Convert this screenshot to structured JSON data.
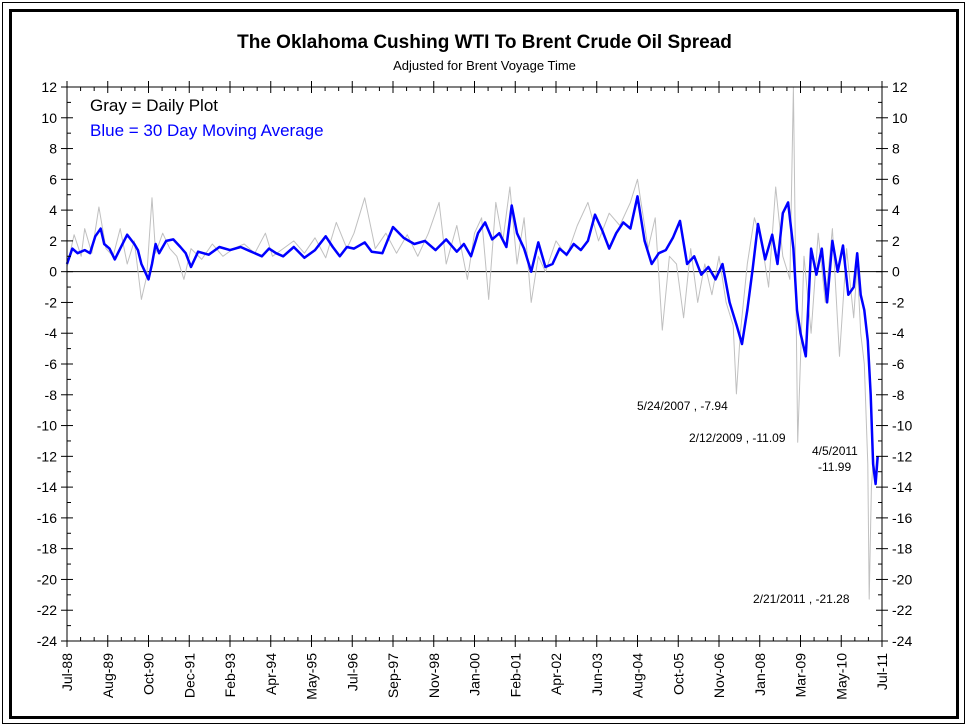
{
  "chart_data": {
    "type": "line",
    "title": "The Oklahoma Cushing WTI To Brent Crude Oil Spread",
    "subtitle": "Adjusted for Brent Voyage Time",
    "xlabel": "",
    "ylabel": "",
    "ylim": [
      -24,
      12
    ],
    "yticks": [
      12,
      10,
      8,
      6,
      4,
      2,
      0,
      -2,
      -4,
      -6,
      -8,
      -10,
      -12,
      -14,
      -16,
      -18,
      -20,
      -22,
      -24
    ],
    "y_minor_step": 1,
    "x_range": [
      1988.5,
      2011.5
    ],
    "x_tick_labels": [
      "Jul-88",
      "Aug-89",
      "Oct-90",
      "Dec-91",
      "Feb-93",
      "Apr-94",
      "May-95",
      "Jul-96",
      "Sep-97",
      "Nov-98",
      "Jan-00",
      "Feb-01",
      "Apr-02",
      "Jun-03",
      "Aug-04",
      "Oct-05",
      "Nov-06",
      "Jan-08",
      "Mar-09",
      "May-10",
      "Jul-11"
    ],
    "grid": false,
    "zero_line": true,
    "right_axis_mirrors_left": true,
    "legend": {
      "placement": "top-left",
      "entries": [
        {
          "label": "Gray = Daily Plot",
          "color": "#000000"
        },
        {
          "label": "Blue = 30 Day Moving Average",
          "color": "#0000ff"
        }
      ]
    },
    "series": [
      {
        "name": "Daily Plot",
        "color": "#c0c0c0",
        "x": [
          1988.5,
          1988.7,
          1988.9,
          1989.0,
          1989.2,
          1989.4,
          1989.6,
          1989.8,
          1990.0,
          1990.2,
          1990.4,
          1990.6,
          1990.75,
          1990.9,
          1991.0,
          1991.2,
          1991.4,
          1991.6,
          1991.8,
          1992.0,
          1992.3,
          1992.6,
          1992.9,
          1993.2,
          1993.5,
          1993.8,
          1994.1,
          1994.3,
          1994.6,
          1994.9,
          1995.2,
          1995.5,
          1995.8,
          1996.1,
          1996.4,
          1996.6,
          1996.9,
          1997.2,
          1997.5,
          1997.8,
          1998.1,
          1998.4,
          1998.7,
          1999.0,
          1999.2,
          1999.5,
          1999.8,
          2000.0,
          2000.2,
          2000.4,
          2000.6,
          2000.8,
          2001.0,
          2001.2,
          2001.4,
          2001.6,
          2001.8,
          2002.0,
          2002.3,
          2002.6,
          2002.9,
          2003.2,
          2003.5,
          2003.8,
          2004.1,
          2004.4,
          2004.6,
          2004.9,
          2005.1,
          2005.3,
          2005.5,
          2005.7,
          2005.9,
          2006.1,
          2006.3,
          2006.5,
          2006.7,
          2006.9,
          2007.1,
          2007.3,
          2007.39,
          2007.5,
          2007.7,
          2007.9,
          2008.1,
          2008.3,
          2008.5,
          2008.7,
          2008.9,
          2009.0,
          2009.12,
          2009.3,
          2009.5,
          2009.7,
          2009.9,
          2010.1,
          2010.3,
          2010.5,
          2010.7,
          2010.8,
          2010.9,
          2011.0,
          2011.1,
          2011.14,
          2011.2,
          2011.26,
          2011.3,
          2011.35
        ],
        "y": [
          0.3,
          2.4,
          1.0,
          2.8,
          1.2,
          4.2,
          1.5,
          1.0,
          2.8,
          0.5,
          2.0,
          -1.8,
          -0.3,
          4.8,
          1.2,
          2.5,
          1.5,
          1.0,
          -0.5,
          1.5,
          0.8,
          1.8,
          1.0,
          1.5,
          1.8,
          1.2,
          2.5,
          1.0,
          1.5,
          2.0,
          1.2,
          2.2,
          0.9,
          3.2,
          1.5,
          2.5,
          4.8,
          1.5,
          2.5,
          1.2,
          2.4,
          1.0,
          2.5,
          4.5,
          0.5,
          3.0,
          -0.5,
          2.5,
          3.5,
          -1.8,
          4.5,
          2.0,
          5.5,
          0.5,
          3.5,
          -2.0,
          1.0,
          0.0,
          2.0,
          1.0,
          3.0,
          4.5,
          2.0,
          3.8,
          3.0,
          4.5,
          6.0,
          1.5,
          3.5,
          -3.8,
          1.0,
          0.5,
          -3.0,
          1.5,
          -2.0,
          0.5,
          -1.5,
          1.0,
          -2.0,
          -3.5,
          -7.94,
          -4.0,
          0.5,
          3.5,
          2.0,
          -1.0,
          5.5,
          1.0,
          -0.5,
          12.0,
          -11.09,
          1.0,
          -4.0,
          2.5,
          -2.0,
          2.8,
          -5.5,
          1.5,
          -3.0,
          0.5,
          -4.0,
          -6.0,
          -12.5,
          -21.28,
          -14.0,
          -11.99,
          -13.5,
          -12.0
        ]
      },
      {
        "name": "30 Day Moving Average",
        "color": "#0000ff",
        "x": [
          1988.5,
          1988.65,
          1988.8,
          1989.0,
          1989.15,
          1989.3,
          1989.45,
          1989.55,
          1989.7,
          1989.85,
          1990.0,
          1990.2,
          1990.4,
          1990.5,
          1990.6,
          1990.7,
          1990.8,
          1990.9,
          1991.0,
          1991.1,
          1991.3,
          1991.5,
          1991.7,
          1991.85,
          1992.0,
          1992.2,
          1992.5,
          1992.8,
          1993.1,
          1993.4,
          1993.7,
          1994.0,
          1994.2,
          1994.4,
          1994.6,
          1994.9,
          1995.2,
          1995.5,
          1995.8,
          1996.0,
          1996.2,
          1996.4,
          1996.6,
          1996.9,
          1997.1,
          1997.4,
          1997.7,
          1998.0,
          1998.3,
          1998.6,
          1998.9,
          1999.2,
          1999.5,
          1999.7,
          1999.9,
          2000.1,
          2000.3,
          2000.5,
          2000.7,
          2000.9,
          2001.05,
          2001.2,
          2001.4,
          2001.6,
          2001.8,
          2002.0,
          2002.2,
          2002.4,
          2002.6,
          2002.8,
          2003.0,
          2003.2,
          2003.4,
          2003.6,
          2003.8,
          2004.0,
          2004.2,
          2004.4,
          2004.6,
          2004.8,
          2005.0,
          2005.2,
          2005.4,
          2005.6,
          2005.8,
          2006.0,
          2006.2,
          2006.4,
          2006.6,
          2006.8,
          2007.0,
          2007.2,
          2007.4,
          2007.55,
          2007.7,
          2007.85,
          2008.0,
          2008.2,
          2008.4,
          2008.55,
          2008.7,
          2008.85,
          2009.0,
          2009.1,
          2009.2,
          2009.35,
          2009.5,
          2009.65,
          2009.8,
          2009.95,
          2010.1,
          2010.25,
          2010.4,
          2010.55,
          2010.7,
          2010.8,
          2010.9,
          2011.0,
          2011.1,
          2011.18,
          2011.25,
          2011.32,
          2011.38
        ],
        "y": [
          0.5,
          1.5,
          1.2,
          1.4,
          1.2,
          2.3,
          2.8,
          1.8,
          1.5,
          0.8,
          1.5,
          2.4,
          1.8,
          1.4,
          0.5,
          0.0,
          -0.5,
          0.5,
          1.8,
          1.2,
          2.0,
          2.1,
          1.6,
          1.2,
          0.3,
          1.3,
          1.1,
          1.6,
          1.4,
          1.6,
          1.3,
          1.0,
          1.5,
          1.2,
          1.0,
          1.6,
          0.9,
          1.4,
          2.3,
          1.6,
          1.0,
          1.6,
          1.5,
          1.9,
          1.3,
          1.2,
          2.9,
          2.2,
          1.8,
          2.0,
          1.4,
          2.1,
          1.3,
          1.8,
          1.0,
          2.5,
          3.2,
          2.1,
          2.5,
          1.6,
          4.3,
          2.5,
          1.5,
          0.0,
          1.9,
          0.3,
          0.5,
          1.5,
          1.1,
          1.8,
          1.4,
          2.0,
          3.7,
          2.7,
          1.5,
          2.5,
          3.2,
          2.8,
          4.9,
          2.0,
          0.5,
          1.2,
          1.4,
          2.2,
          3.3,
          0.5,
          1.0,
          -0.2,
          0.3,
          -0.5,
          0.5,
          -2.0,
          -3.5,
          -4.7,
          -2.5,
          0.2,
          3.1,
          0.8,
          2.4,
          0.5,
          3.8,
          4.5,
          1.5,
          -2.5,
          -4.0,
          -5.5,
          1.5,
          -0.2,
          1.5,
          -2.0,
          2.0,
          0.0,
          1.7,
          -1.5,
          -1.0,
          1.2,
          -1.5,
          -2.5,
          -4.5,
          -8.0,
          -12.5,
          -13.8,
          -12.0
        ]
      }
    ],
    "annotations": [
      {
        "label": "5/24/2007 , -7.94",
        "date": "5/24/2007",
        "value": -7.94
      },
      {
        "label": "2/12/2009 , -11.09",
        "date": "2/12/2009",
        "value": -11.09
      },
      {
        "label_line1": "4/5/2011",
        "label_line2": "-11.99",
        "date": "4/5/2011",
        "value": -11.99
      },
      {
        "label": "2/21/2011 , -21.28",
        "date": "2/21/2011",
        "value": -21.28
      }
    ]
  }
}
